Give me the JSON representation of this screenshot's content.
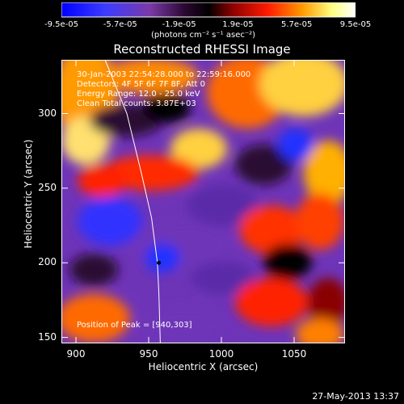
{
  "colorbar": {
    "tick_labels": [
      "-9.5e-05",
      "-5.7e-05",
      "-1.9e-05",
      "1.9e-05",
      "5.7e-05",
      "9.5e-05"
    ],
    "tick_values": [
      -9.5e-05,
      -5.7e-05,
      -1.9e-05,
      1.9e-05,
      5.7e-05,
      9.5e-05
    ],
    "range": [
      -9.5e-05,
      9.5e-05
    ],
    "units_label": "(photons cm⁻² s⁻¹ asec⁻²)",
    "colors": [
      "#0000ff",
      "#5050ff",
      "#7a3aa8",
      "#2a0830",
      "#000000",
      "#8a0000",
      "#ff1a00",
      "#ff9a00",
      "#ffff80",
      "#ffffff"
    ]
  },
  "chart_data": {
    "type": "heatmap",
    "title": "Reconstructed RHESSI Image",
    "xlabel": "Heliocentric X (arcsec)",
    "ylabel": "Heliocentric Y (arcsec)",
    "xlim": [
      890,
      1085
    ],
    "ylim": [
      146,
      336
    ],
    "x_ticks": [
      900,
      950,
      1000,
      1050
    ],
    "y_ticks": [
      150,
      200,
      250,
      300
    ],
    "annotations": [
      "30-Jan-2003 22:54:28.000 to 22:59:16.000",
      "Detectors: 4F 5F 6F 7F 8F, Att 0",
      "Energy Range: 12.0 - 25.0 keV",
      "Clean   Total counts: 3.87E+03"
    ],
    "peak_label": "Position of Peak = [940,303]",
    "peak_position": [
      940,
      303
    ],
    "marker_point": [
      957,
      200
    ],
    "limb_curve": [
      [
        920,
        336
      ],
      [
        935,
        300
      ],
      [
        945,
        260
      ],
      [
        952,
        230
      ],
      [
        956,
        200
      ],
      [
        957,
        180
      ],
      [
        958,
        146
      ]
    ]
  },
  "footer": {
    "timestamp": "27-May-2013 13:37"
  }
}
